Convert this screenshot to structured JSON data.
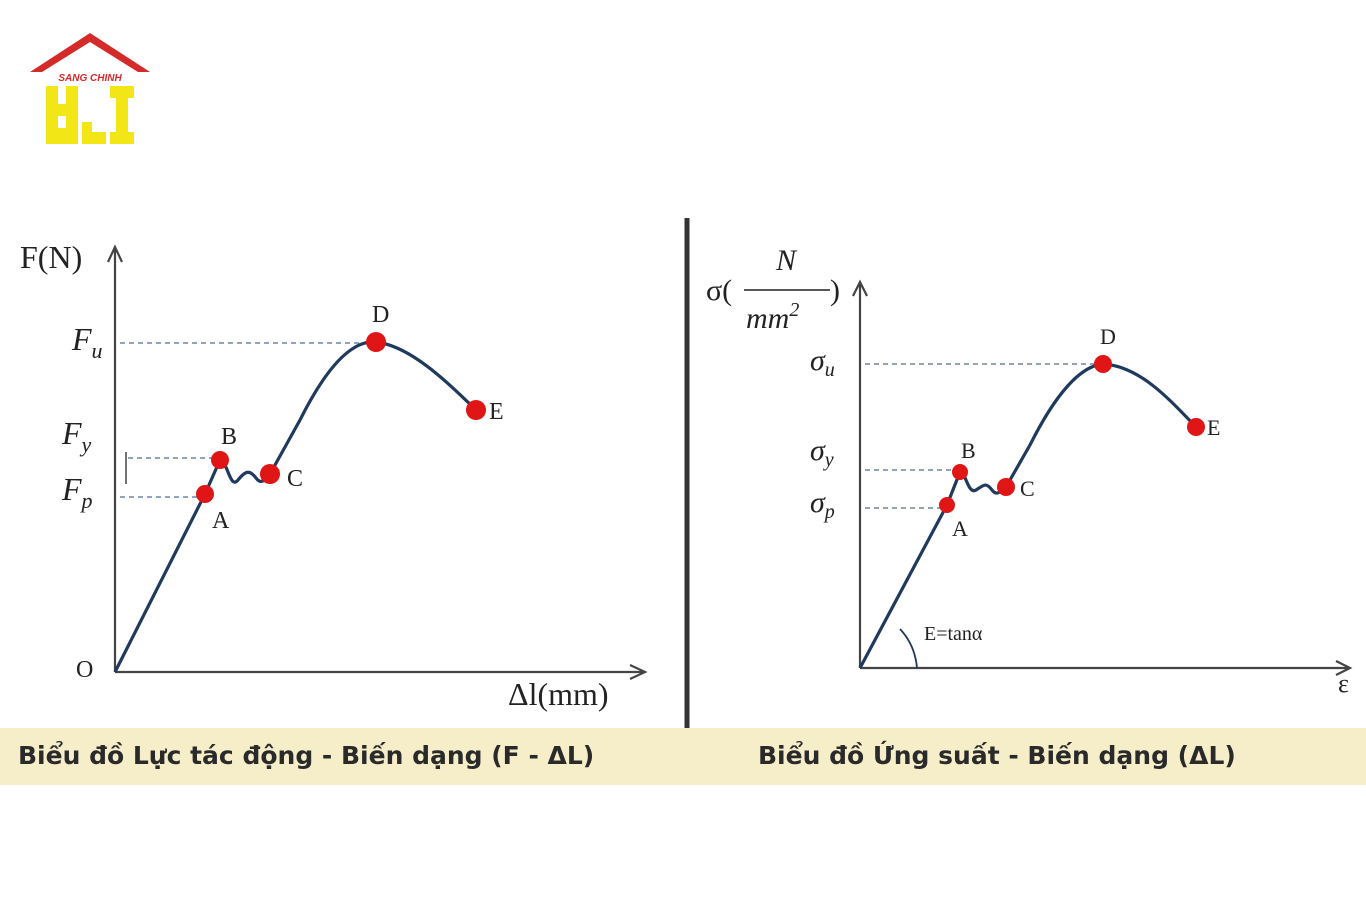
{
  "logo": {
    "brand": "SANG CHINH"
  },
  "panels": [
    {
      "y_axis_label": "F(N)",
      "x_axis_label": "Δl(mm)",
      "origin": "O",
      "levels": [
        {
          "base": "F",
          "sub": "u"
        },
        {
          "base": "F",
          "sub": "y"
        },
        {
          "base": "F",
          "sub": "p"
        }
      ],
      "points": [
        "A",
        "B",
        "C",
        "D",
        "E"
      ],
      "caption": "Biểu đồ Lực tác động - Biến dạng (F - ΔL)"
    },
    {
      "y_axis_label": {
        "open": "σ(",
        "numerator": "N",
        "denominator": "mm",
        "exponent": "2",
        "close": ")"
      },
      "x_axis_label": "ε",
      "annotation": "E=tanα",
      "levels": [
        {
          "base": "σ",
          "sub": "u"
        },
        {
          "base": "σ",
          "sub": "y"
        },
        {
          "base": "σ",
          "sub": "p"
        }
      ],
      "points": [
        "A",
        "B",
        "C",
        "D",
        "E"
      ],
      "caption": "Biểu đồ Ứng suất - Biến dạng (ΔL)"
    }
  ]
}
